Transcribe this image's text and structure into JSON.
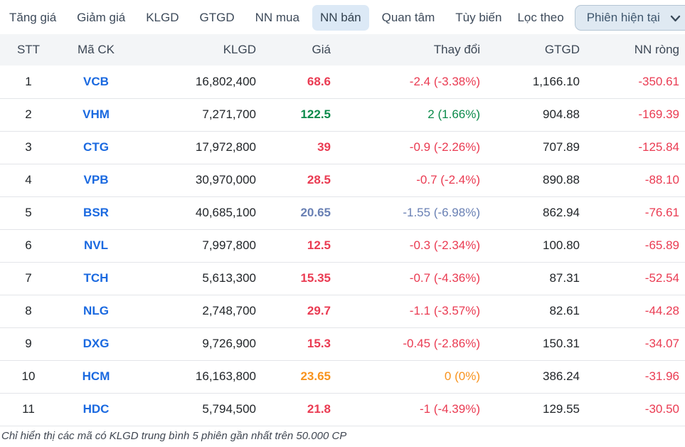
{
  "tabs": [
    {
      "id": "tang-gia",
      "label": "Tăng giá",
      "active": false
    },
    {
      "id": "giam-gia",
      "label": "Giảm giá",
      "active": false
    },
    {
      "id": "klgd",
      "label": "KLGD",
      "active": false
    },
    {
      "id": "gtgd",
      "label": "GTGD",
      "active": false
    },
    {
      "id": "nn-mua",
      "label": "NN mua",
      "active": false
    },
    {
      "id": "nn-ban",
      "label": "NN bán",
      "active": true
    },
    {
      "id": "quan-tam",
      "label": "Quan tâm",
      "active": false
    },
    {
      "id": "tuy-bien",
      "label": "Tùy biến",
      "active": false
    }
  ],
  "filter": {
    "label": "Lọc theo",
    "selected": "Phiên hiện tại"
  },
  "table": {
    "columns": [
      "STT",
      "Mã CK",
      "KLGD",
      "Giá",
      "Thay đổi",
      "GTGD",
      "NN ròng"
    ],
    "rows": [
      {
        "stt": "1",
        "symbol": "VCB",
        "klgd": "16,802,400",
        "price": "68.6",
        "change": "-2.4 (-3.38%)",
        "gtgd": "1,166.10",
        "nn_rong": "-350.61",
        "trend": "down"
      },
      {
        "stt": "2",
        "symbol": "VHM",
        "klgd": "7,271,700",
        "price": "122.5",
        "change": "2 (1.66%)",
        "gtgd": "904.88",
        "nn_rong": "-169.39",
        "trend": "up"
      },
      {
        "stt": "3",
        "symbol": "CTG",
        "klgd": "17,972,800",
        "price": "39",
        "change": "-0.9 (-2.26%)",
        "gtgd": "707.89",
        "nn_rong": "-125.84",
        "trend": "down"
      },
      {
        "stt": "4",
        "symbol": "VPB",
        "klgd": "30,970,000",
        "price": "28.5",
        "change": "-0.7 (-2.4%)",
        "gtgd": "890.88",
        "nn_rong": "-88.10",
        "trend": "down"
      },
      {
        "stt": "5",
        "symbol": "BSR",
        "klgd": "40,685,100",
        "price": "20.65",
        "change": "-1.55 (-6.98%)",
        "gtgd": "862.94",
        "nn_rong": "-76.61",
        "trend": "floor"
      },
      {
        "stt": "6",
        "symbol": "NVL",
        "klgd": "7,997,800",
        "price": "12.5",
        "change": "-0.3 (-2.34%)",
        "gtgd": "100.80",
        "nn_rong": "-65.89",
        "trend": "down"
      },
      {
        "stt": "7",
        "symbol": "TCH",
        "klgd": "5,613,300",
        "price": "15.35",
        "change": "-0.7 (-4.36%)",
        "gtgd": "87.31",
        "nn_rong": "-52.54",
        "trend": "down"
      },
      {
        "stt": "8",
        "symbol": "NLG",
        "klgd": "2,748,700",
        "price": "29.7",
        "change": "-1.1 (-3.57%)",
        "gtgd": "82.61",
        "nn_rong": "-44.28",
        "trend": "down"
      },
      {
        "stt": "9",
        "symbol": "DXG",
        "klgd": "9,726,900",
        "price": "15.3",
        "change": "-0.45 (-2.86%)",
        "gtgd": "150.31",
        "nn_rong": "-34.07",
        "trend": "down"
      },
      {
        "stt": "10",
        "symbol": "HCM",
        "klgd": "16,163,800",
        "price": "23.65",
        "change": "0 (0%)",
        "gtgd": "386.24",
        "nn_rong": "-31.96",
        "trend": "reference"
      },
      {
        "stt": "11",
        "symbol": "HDC",
        "klgd": "5,794,500",
        "price": "21.8",
        "change": "-1 (-4.39%)",
        "gtgd": "129.55",
        "nn_rong": "-30.50",
        "trend": "down"
      }
    ]
  },
  "footnote": "Chỉ hiển thị các mã có KLGD trung bình 5 phiên gần nhất trên 50.000 CP",
  "colors": {
    "down": "#ea3b52",
    "up": "#0a8a4a",
    "floor": "#6980b4",
    "reference": "#f8931d",
    "symbol_link": "#1a69e0",
    "active_tab_bg": "#dcе9f6",
    "select_bg": "#dfe9f2",
    "select_border": "#b4c5d4"
  }
}
